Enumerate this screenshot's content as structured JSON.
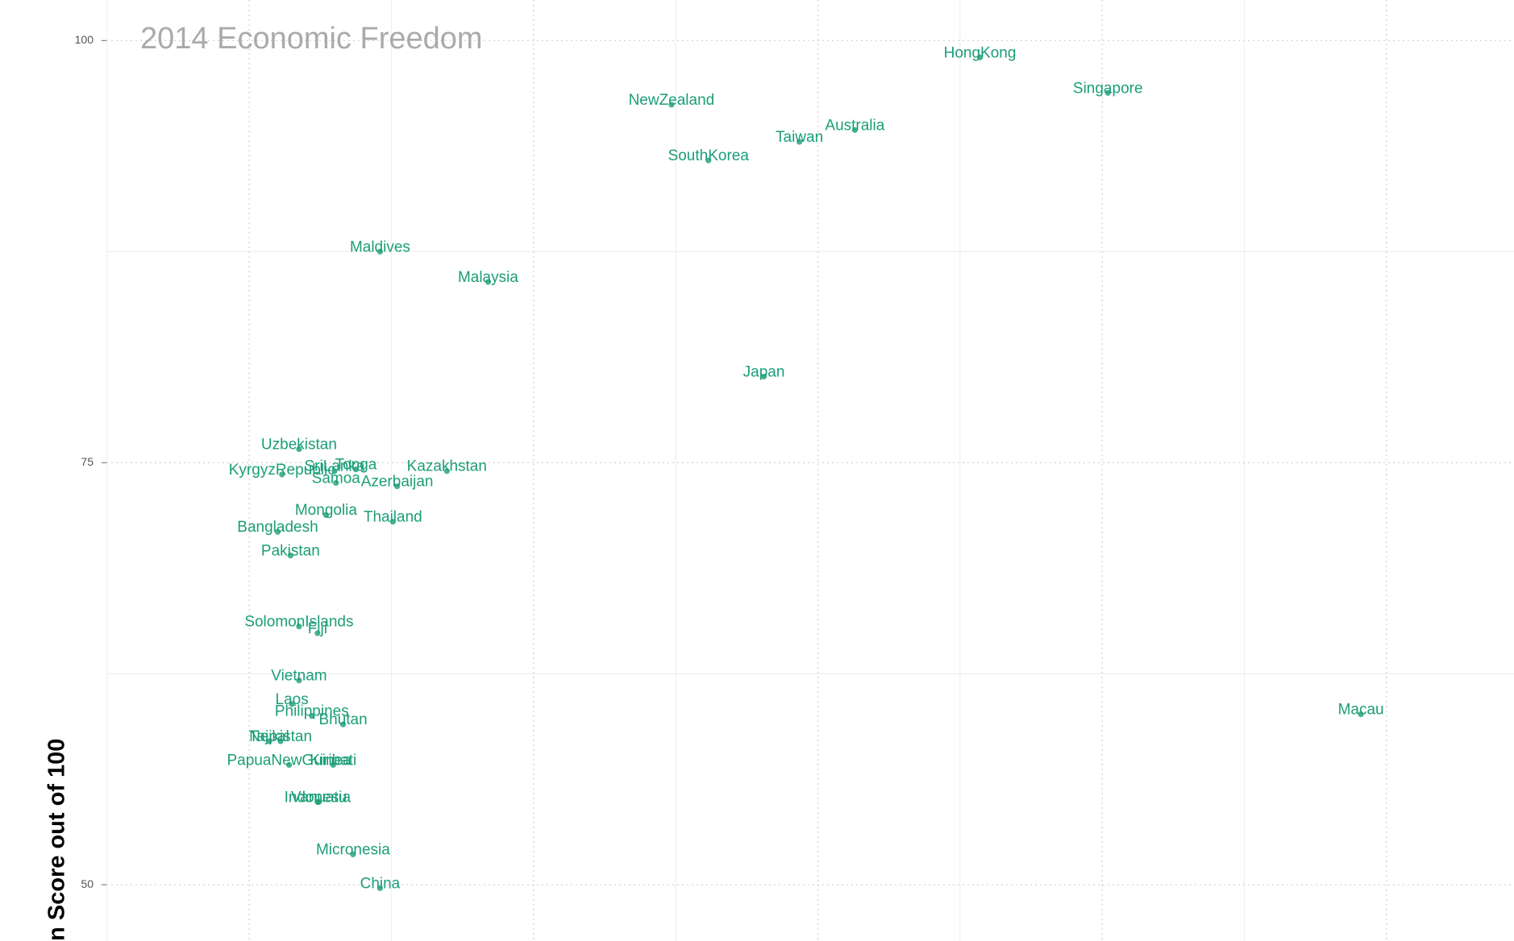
{
  "chart_data": {
    "type": "scatter",
    "title": "2014 Economic Freedom",
    "y_label": "n Score out of 100",
    "color": "#1b9e77",
    "labels": [
      "HongKong",
      "Singapore",
      "NewZealand",
      "Australia",
      "Taiwan",
      "SouthKorea",
      "Maldives",
      "Malaysia",
      "Japan",
      "Uzbekistan",
      "Tonga",
      "Kazakhstan",
      "KyrgyzRepublic",
      "SriLanka",
      "Samoa",
      "Azerbaijan",
      "Mongolia",
      "Thailand",
      "Bangladesh",
      "Pakistan",
      "SolomonIslands",
      "Fiji",
      "Vietnam",
      "Laos",
      "Philippines",
      "Bhutan",
      "Macau",
      "Nepal",
      "Tajikistan",
      "PapuaNewGuinea",
      "Kiribati",
      "Vanuatu",
      "Indonesia",
      "Micronesia",
      "China"
    ],
    "x": [
      51.4,
      60.4,
      29.7,
      42.6,
      38.7,
      32.3,
      9.2,
      16.8,
      36.2,
      3.5,
      7.5,
      13.9,
      2.3,
      6.0,
      6.1,
      10.4,
      5.4,
      10.1,
      2.0,
      2.9,
      3.5,
      4.8,
      3.5,
      3.0,
      4.4,
      6.6,
      78.2,
      1.4,
      2.2,
      2.8,
      5.9,
      4.9,
      4.8,
      7.3,
      9.2
    ],
    "values": [
      99.0,
      96.9,
      96.2,
      94.7,
      94.0,
      92.9,
      87.5,
      85.7,
      80.1,
      75.8,
      74.6,
      74.5,
      74.3,
      74.5,
      73.8,
      73.6,
      71.9,
      71.5,
      70.9,
      69.5,
      65.3,
      64.9,
      62.1,
      60.7,
      60.0,
      59.5,
      60.1,
      58.5,
      58.5,
      57.1,
      57.1,
      54.9,
      54.9,
      51.8,
      49.8
    ],
    "xlim": [
      -10.05,
      88.97
    ],
    "ylim": [
      46.67,
      102.4
    ],
    "xticks": [
      0,
      20,
      40,
      60,
      80
    ],
    "yticks": [
      50,
      75,
      100
    ],
    "grid": true
  }
}
